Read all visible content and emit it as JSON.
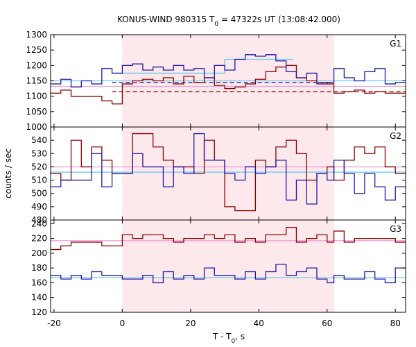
{
  "chart_data": {
    "type": "line",
    "title": "KONUS-WIND 980315 T",
    "title_sub": "0",
    "title_rest": " = 47322s UT (13:08:42.000)",
    "xlabel": "T - T",
    "xlabel_sub": "0",
    "xlabel_rest": ", s",
    "ylabel": "counts / sec",
    "xlim": [
      -21,
      83
    ],
    "xticks": [
      "-20",
      "0",
      "20",
      "40",
      "60",
      "80"
    ],
    "shaded_interval": [
      0,
      62
    ],
    "colors": {
      "red": "#8b0000",
      "blue": "#1c1ca8",
      "cyan": "#70c8f0",
      "pink": "#f0a0d8",
      "shade": "#fde8ec"
    },
    "panels": [
      {
        "label": "G1",
        "ylim": [
          1000,
          1300
        ],
        "yticks": [
          "1000",
          "1050",
          "1100",
          "1150",
          "1200",
          "1250",
          "1300"
        ],
        "bin_edges": [
          -21,
          -18,
          -15,
          -12,
          -9,
          -6,
          -3,
          0,
          3,
          6,
          9,
          12,
          15,
          18,
          21,
          24,
          27,
          30,
          33,
          36,
          39,
          42,
          45,
          48,
          51,
          54,
          57,
          60,
          62,
          65,
          68,
          71,
          74,
          77,
          80,
          83
        ],
        "series": [
          {
            "color": "red",
            "values": [
              1110,
              1120,
              1100,
              1100,
              1100,
              1085,
              1075,
              1140,
              1150,
              1155,
              1150,
              1160,
              1140,
              1165,
              1145,
              1160,
              1135,
              1125,
              1130,
              1140,
              1155,
              1180,
              1195,
              1200,
              1160,
              1150,
              1145,
              1140,
              1110,
              1115,
              1120,
              1110,
              1115,
              1110,
              1110
            ]
          },
          {
            "color": "blue",
            "values": [
              1140,
              1155,
              1130,
              1150,
              1140,
              1190,
              1175,
              1200,
              1205,
              1185,
              1195,
              1185,
              1200,
              1185,
              1190,
              1160,
              1200,
              1185,
              1220,
              1235,
              1230,
              1235,
              1215,
              1180,
              1160,
              1175,
              1140,
              1145,
              1190,
              1160,
              1150,
              1180,
              1190,
              1140,
              1145
            ]
          }
        ],
        "bg_lines": [
          {
            "color": "red",
            "value": 1115,
            "dashed_interval": [
              -3,
              83
            ],
            "solid_from": 62
          },
          {
            "color": "blue",
            "value": 1145,
            "dashed_interval": [
              -3,
              62
            ]
          },
          {
            "color": "cyan",
            "value": 1150,
            "solid_full": true
          }
        ],
        "fit_lines": [
          {
            "color": "cyan",
            "x": [
              0,
              30,
              30,
              50
            ],
            "y": [
              1175,
              1175,
              1220,
              1220
            ]
          },
          {
            "color": "pink",
            "x": [
              -21,
              83
            ],
            "y": [
              1132,
              1132
            ]
          }
        ]
      },
      {
        "label": "G2",
        "ylim": [
          480,
          550
        ],
        "yticks": [
          "480",
          "490",
          "500",
          "510",
          "520",
          "530",
          "540"
        ],
        "bin_edges": [
          -21,
          -18,
          -15,
          -12,
          -9,
          -6,
          -3,
          0,
          3,
          6,
          9,
          12,
          15,
          18,
          21,
          24,
          27,
          30,
          33,
          36,
          39,
          42,
          45,
          48,
          51,
          54,
          57,
          60,
          62,
          65,
          68,
          71,
          74,
          77,
          80,
          83
        ],
        "series": [
          {
            "color": "red",
            "values": [
              515,
              510,
              540,
              520,
              535,
              525,
              515,
              515,
              545,
              545,
              535,
              525,
              520,
              520,
              515,
              540,
              525,
              490,
              487,
              487,
              525,
              520,
              535,
              540,
              530,
              510,
              515,
              520,
              510,
              525,
              535,
              530,
              535,
              520,
              515
            ]
          },
          {
            "color": "blue",
            "values": [
              505,
              510,
              510,
              510,
              530,
              505,
              515,
              515,
              530,
              520,
              520,
              505,
              520,
              515,
              545,
              525,
              525,
              515,
              510,
              520,
              515,
              520,
              525,
              495,
              510,
              492,
              515,
              510,
              525,
              515,
              500,
              515,
              505,
              495,
              505
            ]
          }
        ],
        "fit_lines": [
          {
            "color": "pink",
            "x": [
              -21,
              83
            ],
            "y": [
              520,
              520
            ]
          },
          {
            "color": "cyan",
            "x": [
              -21,
              83
            ],
            "y": [
              516,
              516
            ]
          }
        ]
      },
      {
        "label": "G3",
        "ylim": [
          120,
          245
        ],
        "yticks": [
          "120",
          "140",
          "160",
          "180",
          "200",
          "220",
          "240"
        ],
        "bin_edges": [
          -21,
          -18,
          -15,
          -12,
          -9,
          -6,
          -3,
          0,
          3,
          6,
          9,
          12,
          15,
          18,
          21,
          24,
          27,
          30,
          33,
          36,
          39,
          42,
          45,
          48,
          51,
          54,
          57,
          60,
          62,
          65,
          68,
          71,
          74,
          77,
          80,
          83
        ],
        "series": [
          {
            "color": "red",
            "values": [
              205,
              210,
              215,
              215,
              215,
              210,
              210,
              225,
              220,
              225,
              225,
              220,
              215,
              220,
              220,
              225,
              220,
              225,
              215,
              220,
              215,
              225,
              225,
              235,
              215,
              220,
              225,
              215,
              230,
              215,
              220,
              220,
              220,
              220,
              215
            ]
          },
          {
            "color": "blue",
            "values": [
              170,
              165,
              170,
              165,
              175,
              170,
              170,
              165,
              165,
              170,
              160,
              175,
              165,
              170,
              165,
              180,
              170,
              170,
              165,
              175,
              165,
              175,
              185,
              170,
              175,
              180,
              165,
              160,
              170,
              165,
              165,
              175,
              165,
              160,
              180
            ]
          }
        ],
        "fit_lines": [
          {
            "color": "pink",
            "x": [
              -21,
              83
            ],
            "y": [
              217,
              217
            ]
          },
          {
            "color": "cyan",
            "x": [
              -21,
              83
            ],
            "y": [
              167,
              167
            ]
          }
        ]
      }
    ]
  }
}
